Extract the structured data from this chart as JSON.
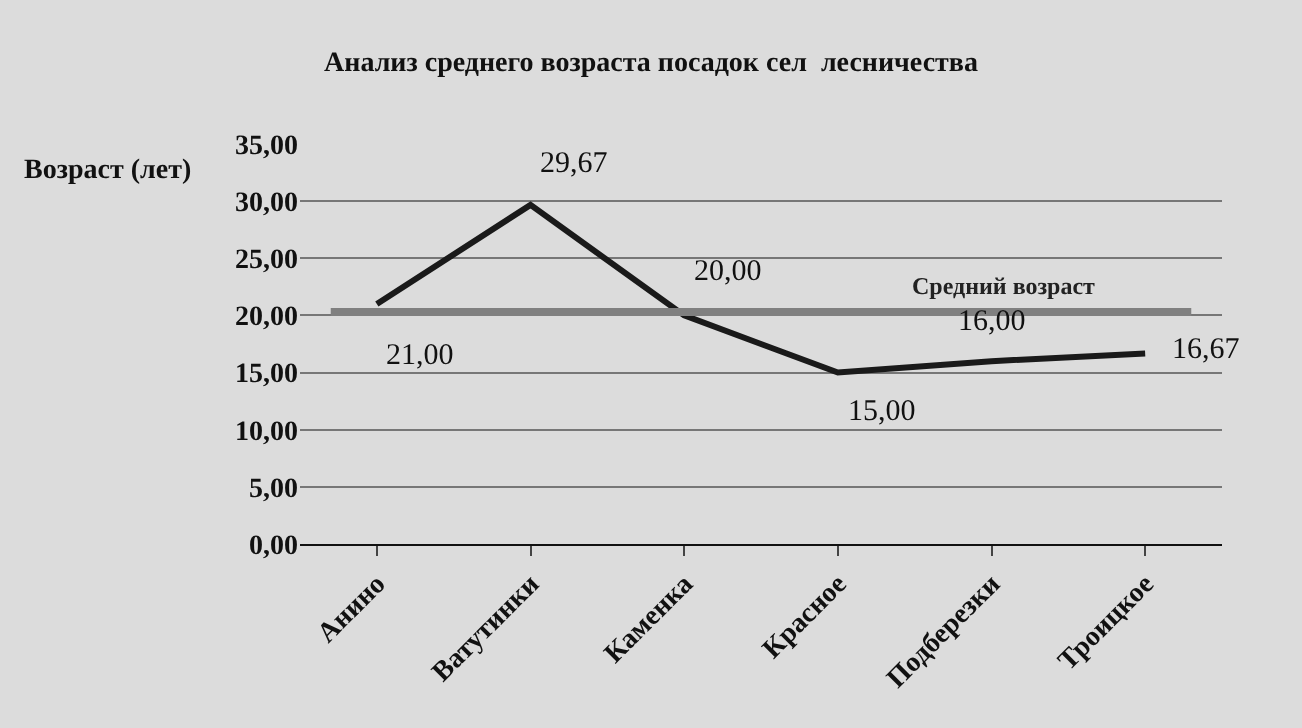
{
  "chart_data": {
    "type": "line",
    "title": "Анализ среднего возраста посадок сел  лесничества",
    "ylabel": "Возраст (лет)",
    "categories": [
      "Анино",
      "Ватутинки",
      "Каменка",
      "Красное",
      "Подберезки",
      "Троицкое"
    ],
    "series": [
      {
        "color": "#1a1a1a",
        "values": [
          21.0,
          29.67,
          20.0,
          15.0,
          16.0,
          16.67
        ],
        "value_labels": [
          "21,00",
          "29,67",
          "20,00",
          "15,00",
          "16,00",
          "16,67"
        ]
      }
    ],
    "ref_lines": [
      {
        "axis": "y",
        "value": 20.3,
        "label": "Средний возраст",
        "color": "#808080"
      }
    ],
    "ylim": [
      0,
      35
    ],
    "yticks": [
      {
        "value": 0,
        "label": "0,00"
      },
      {
        "value": 5,
        "label": "5,00"
      },
      {
        "value": 10,
        "label": "10,00"
      },
      {
        "value": 15,
        "label": "15,00"
      },
      {
        "value": 20,
        "label": "20,00"
      },
      {
        "value": 25,
        "label": "25,00"
      },
      {
        "value": 30,
        "label": "30,00"
      },
      {
        "value": 35,
        "label": "35,00"
      }
    ],
    "grid": "y",
    "marker": "none",
    "line_style": "solid"
  }
}
